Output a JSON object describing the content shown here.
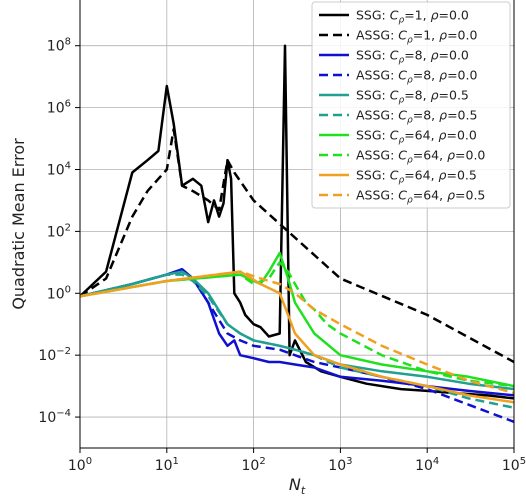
{
  "chart_data": {
    "type": "line",
    "xlabel": "N_t",
    "ylabel": "Quadratic Mean Error",
    "xscale": "log",
    "yscale": "log",
    "xlim": [
      1,
      100000
    ],
    "ylim": [
      1e-05,
      3000000000
    ],
    "grid": true,
    "legend_position": "top-right",
    "x_ticks": [
      {
        "value": 1,
        "base": "10",
        "exp": "0"
      },
      {
        "value": 10,
        "base": "10",
        "exp": "1"
      },
      {
        "value": 100,
        "base": "10",
        "exp": "2"
      },
      {
        "value": 1000,
        "base": "10",
        "exp": "3"
      },
      {
        "value": 10000,
        "base": "10",
        "exp": "4"
      },
      {
        "value": 100000,
        "base": "10",
        "exp": "5"
      }
    ],
    "y_ticks": [
      {
        "value": 0.0001,
        "base": "10",
        "exp": "−4"
      },
      {
        "value": 0.01,
        "base": "10",
        "exp": "−2"
      },
      {
        "value": 1,
        "base": "10",
        "exp": "0"
      },
      {
        "value": 100,
        "base": "10",
        "exp": "2"
      },
      {
        "value": 10000,
        "base": "10",
        "exp": "4"
      },
      {
        "value": 1000000,
        "base": "10",
        "exp": "6"
      },
      {
        "value": 100000000,
        "base": "10",
        "exp": "8"
      }
    ],
    "series": [
      {
        "name": "SSG: Cρ=1, ρ=0.0",
        "method": "SSG",
        "c_rho": "1",
        "rho": "0.0",
        "color": "#000000",
        "dashed": false,
        "x": [
          1,
          2,
          4,
          6,
          8,
          10,
          12,
          15,
          20,
          25,
          30,
          35,
          40,
          45,
          50,
          55,
          60,
          70,
          80,
          100,
          120,
          150,
          200,
          230,
          260,
          300,
          400,
          600,
          1000,
          2000,
          5000,
          10000,
          20000,
          50000,
          100000
        ],
        "y": [
          0.8,
          5,
          8000,
          20000,
          40000,
          5000000,
          300000,
          3000,
          5000,
          3000,
          200,
          1000,
          300,
          800,
          20000,
          5000,
          1,
          0.5,
          0.2,
          0.1,
          0.08,
          0.04,
          0.05,
          100000000,
          0.01,
          0.03,
          0.006,
          0.003,
          0.002,
          0.0012,
          0.0008,
          0.0007,
          0.0006,
          0.0005,
          0.0004
        ]
      },
      {
        "name": "ASSG: Cρ=1, ρ=0.0",
        "method": "ASSG",
        "c_rho": "1",
        "rho": "0.0",
        "color": "#000000",
        "dashed": true,
        "x": [
          1,
          2,
          4,
          6,
          8,
          10,
          12,
          15,
          20,
          30,
          40,
          50,
          60,
          100,
          1000,
          10000,
          100000
        ],
        "y": [
          0.8,
          3,
          300,
          2000,
          5000,
          10000,
          200000,
          3000,
          2000,
          1000,
          500,
          20000,
          8000,
          1000,
          3,
          0.2,
          0.006
        ]
      },
      {
        "name": "SSG: Cρ=8, ρ=0.0",
        "method": "SSG",
        "c_rho": "8",
        "rho": "0.0",
        "color": "#1010d0",
        "dashed": false,
        "x": [
          1,
          4,
          10,
          15,
          20,
          30,
          40,
          50,
          60,
          70,
          100,
          150,
          200,
          300,
          500,
          1000,
          3000,
          10000,
          30000,
          100000
        ],
        "y": [
          0.8,
          2,
          4,
          6,
          3,
          0.5,
          0.05,
          0.02,
          0.03,
          0.01,
          0.008,
          0.006,
          0.006,
          0.005,
          0.004,
          0.002,
          0.0015,
          0.001,
          0.0007,
          0.0005
        ]
      },
      {
        "name": "ASSG: Cρ=8, ρ=0.0",
        "method": "ASSG",
        "c_rho": "8",
        "rho": "0.0",
        "color": "#1010d0",
        "dashed": true,
        "x": [
          1,
          4,
          10,
          15,
          20,
          30,
          50,
          70,
          100,
          200,
          300,
          500,
          1000,
          3000,
          10000,
          30000,
          100000
        ],
        "y": [
          0.8,
          2,
          4,
          5,
          3,
          0.5,
          0.05,
          0.03,
          0.02,
          0.015,
          0.01,
          0.006,
          0.004,
          0.002,
          0.0008,
          0.00025,
          7e-05
        ]
      },
      {
        "name": "SSG: Cρ=8, ρ=0.5",
        "method": "SSG",
        "c_rho": "8",
        "rho": "0.5",
        "color": "#20a090",
        "dashed": false,
        "x": [
          1,
          4,
          10,
          15,
          20,
          30,
          50,
          70,
          100,
          200,
          300,
          500,
          1000,
          3000,
          10000,
          30000,
          100000
        ],
        "y": [
          0.8,
          2,
          4,
          5,
          3,
          1,
          0.1,
          0.05,
          0.03,
          0.02,
          0.015,
          0.01,
          0.005,
          0.003,
          0.002,
          0.0012,
          0.0008
        ]
      },
      {
        "name": "ASSG: Cρ=8, ρ=0.5",
        "method": "ASSG",
        "c_rho": "8",
        "rho": "0.5",
        "color": "#20a090",
        "dashed": true,
        "x": [
          1,
          4,
          10,
          15,
          20,
          30,
          50,
          70,
          100,
          200,
          300,
          500,
          1000,
          3000,
          10000,
          30000,
          100000
        ],
        "y": [
          0.8,
          2,
          4,
          4,
          2.5,
          0.8,
          0.1,
          0.05,
          0.03,
          0.02,
          0.015,
          0.01,
          0.004,
          0.002,
          0.001,
          0.0004,
          0.0002
        ]
      },
      {
        "name": "SSG: Cρ=64, ρ=0.0",
        "method": "SSG",
        "c_rho": "64",
        "rho": "0.0",
        "color": "#20e020",
        "dashed": false,
        "x": [
          1,
          10,
          70,
          120,
          150,
          200,
          250,
          300,
          500,
          1000,
          3000,
          10000,
          30000,
          100000
        ],
        "y": [
          0.8,
          2.5,
          4,
          2,
          5,
          20,
          3,
          0.5,
          0.05,
          0.01,
          0.005,
          0.003,
          0.002,
          0.001
        ]
      },
      {
        "name": "ASSG: Cρ=64, ρ=0.0",
        "method": "ASSG",
        "c_rho": "64",
        "rho": "0.0",
        "color": "#20e020",
        "dashed": true,
        "x": [
          1,
          10,
          70,
          100,
          150,
          200,
          250,
          300,
          400,
          500,
          700,
          1000,
          3000,
          10000,
          30000,
          100000
        ],
        "y": [
          0.8,
          2.5,
          4,
          2,
          3,
          10,
          5,
          2,
          0.5,
          0.3,
          0.1,
          0.05,
          0.01,
          0.003,
          0.0015,
          0.001
        ]
      },
      {
        "name": "SSG: Cρ=64, ρ=0.5",
        "method": "SSG",
        "c_rho": "64",
        "rho": "0.5",
        "color": "#f0a020",
        "dashed": false,
        "x": [
          1,
          10,
          70,
          120,
          200,
          250,
          300,
          500,
          1000,
          3000,
          10000,
          30000,
          100000
        ],
        "y": [
          0.8,
          2.5,
          5,
          2,
          1,
          0.2,
          0.05,
          0.01,
          0.005,
          0.002,
          0.001,
          0.0005,
          0.0003
        ]
      },
      {
        "name": "ASSG: Cρ=64, ρ=0.5",
        "method": "ASSG",
        "c_rho": "64",
        "rho": "0.5",
        "color": "#f0a020",
        "dashed": true,
        "x": [
          1,
          10,
          70,
          120,
          200,
          300,
          500,
          1000,
          3000,
          10000,
          30000,
          100000
        ],
        "y": [
          0.8,
          2.5,
          5,
          3,
          2,
          1,
          0.3,
          0.1,
          0.02,
          0.005,
          0.0015,
          0.0006
        ]
      }
    ]
  }
}
